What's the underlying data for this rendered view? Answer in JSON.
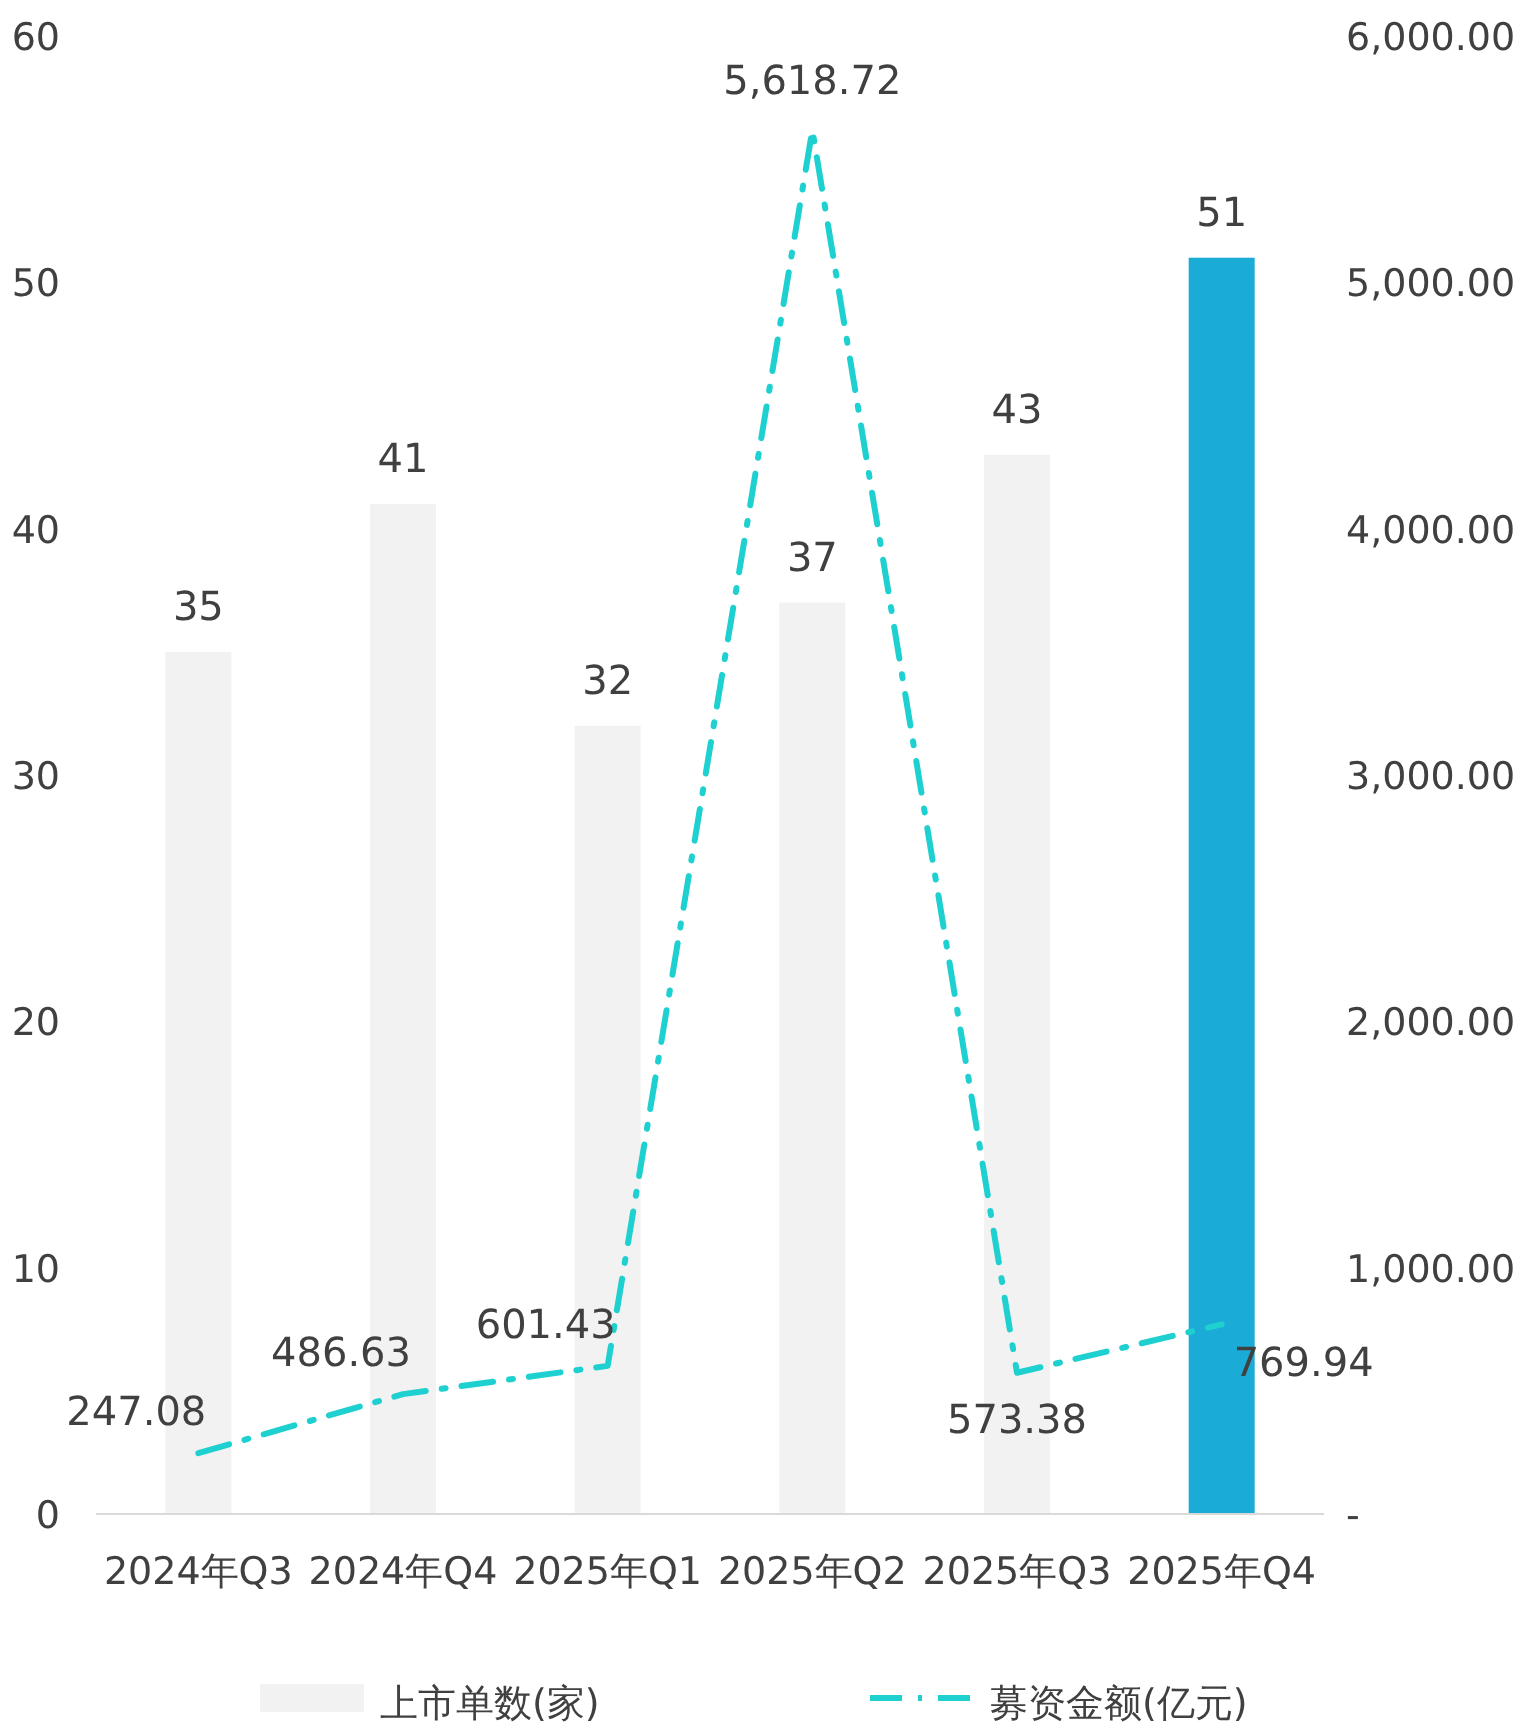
{
  "chart_data": {
    "type": "bar",
    "categories": [
      "2024年Q3",
      "2024年Q4",
      "2025年Q1",
      "2025年Q2",
      "2025年Q3",
      "2025年Q4"
    ],
    "series": [
      {
        "name": "上市单数(家)",
        "colors": [
          "#f2f2f2",
          "#f2f2f2",
          "#f2f2f2",
          "#f2f2f2",
          "#f2f2f2",
          "#1aabd6"
        ],
        "color": "#f2f2f2",
        "values": [
          35,
          41,
          32,
          37,
          43,
          51
        ],
        "value_labels": [
          "35",
          "41",
          "32",
          "37",
          "43",
          "51"
        ]
      },
      {
        "name": "募资金额(亿元)",
        "type": "line",
        "axis": "y2",
        "color": "#1fd0d0",
        "line_style": "dashed",
        "values": [
          247.08,
          486.63,
          601.43,
          5618.72,
          573.38,
          769.94
        ],
        "value_labels": [
          "247.08",
          "486.63",
          "601.43",
          "5,618.72",
          "573.38",
          "769.94"
        ]
      }
    ],
    "ylim": [
      0,
      60
    ],
    "yticks": [
      0,
      10,
      20,
      30,
      40,
      50,
      60
    ],
    "y2lim": [
      0,
      6000
    ],
    "y2ticks": [
      {
        "value": 0,
        "label": "-"
      },
      {
        "value": 1000,
        "label": "1,000.00"
      },
      {
        "value": 2000,
        "label": "2,000.00"
      },
      {
        "value": 3000,
        "label": "3,000.00"
      },
      {
        "value": 4000,
        "label": "4,000.00"
      },
      {
        "value": 5000,
        "label": "5,000.00"
      },
      {
        "value": 6000,
        "label": "6,000.00"
      }
    ],
    "grid": false,
    "legend": "bottom"
  }
}
